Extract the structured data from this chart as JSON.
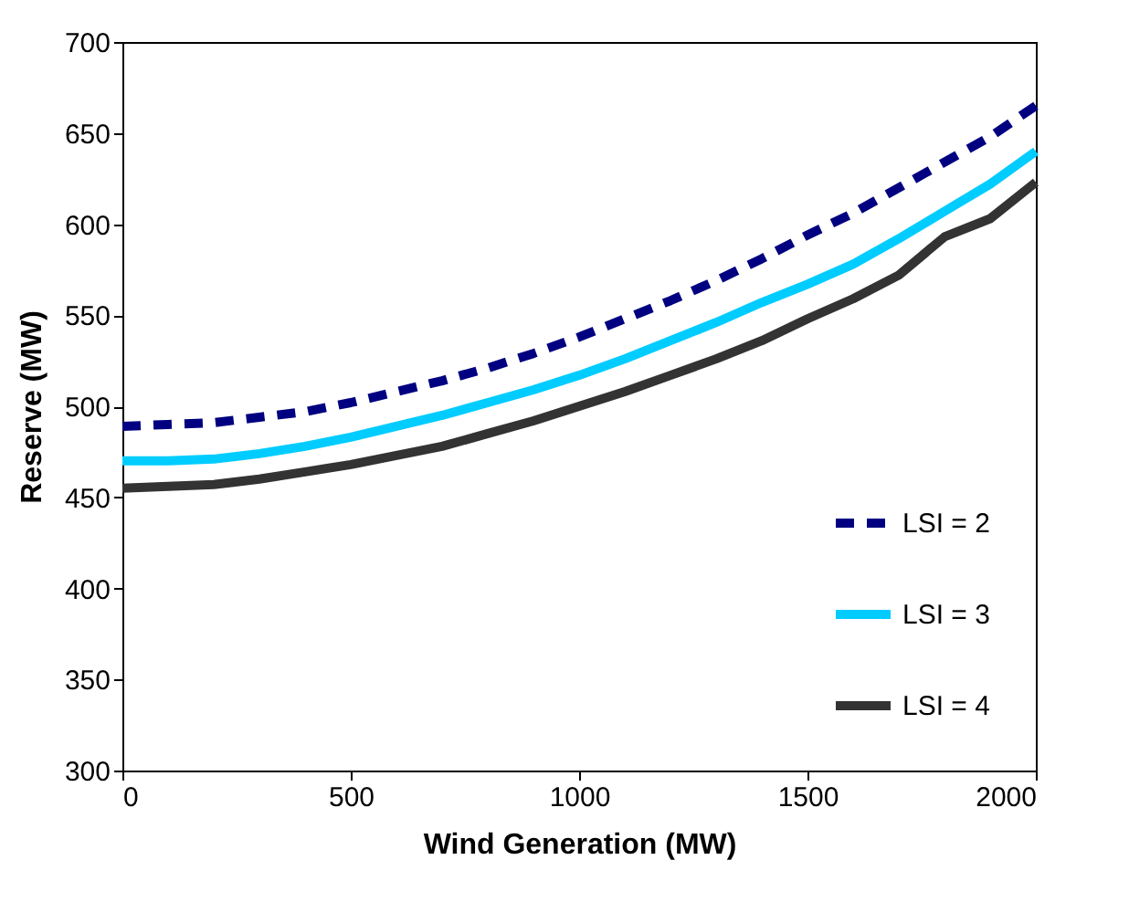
{
  "chart_data": {
    "type": "line",
    "xlabel": "Wind Generation (MW)",
    "ylabel": "Reserve (MW)",
    "x": [
      0,
      100,
      200,
      300,
      400,
      500,
      600,
      700,
      800,
      900,
      1000,
      1100,
      1200,
      1300,
      1400,
      1500,
      1600,
      1700,
      1800,
      1900,
      2000
    ],
    "series": [
      {
        "name": "LSI = 2",
        "color": "#000080",
        "line_style": "dashed",
        "values": [
          489,
          490,
          491,
          494,
          497,
          502,
          508,
          514,
          521,
          529,
          538,
          548,
          558,
          569,
          581,
          594,
          606,
          620,
          634,
          648,
          665
        ]
      },
      {
        "name": "LSI = 3",
        "color": "#00ccff",
        "line_style": "solid",
        "values": [
          470,
          470,
          471,
          474,
          478,
          483,
          489,
          495,
          502,
          509,
          517,
          526,
          536,
          546,
          557,
          567,
          578,
          592,
          607,
          622,
          640
        ]
      },
      {
        "name": "LSI = 4",
        "color": "#333333",
        "line_style": "solid",
        "values": [
          455,
          456,
          457,
          460,
          464,
          468,
          473,
          478,
          485,
          492,
          500,
          508,
          517,
          526,
          536,
          548,
          559,
          572,
          593,
          603,
          623
        ]
      }
    ],
    "xlim": [
      0,
      2000
    ],
    "xticks": [
      0,
      500,
      1000,
      1500,
      2000
    ],
    "ylim": [
      300,
      700
    ],
    "yticks": [
      300,
      350,
      400,
      450,
      500,
      550,
      600,
      650,
      700
    ],
    "grid": false,
    "legend": "bottom right",
    "marker": "none"
  }
}
